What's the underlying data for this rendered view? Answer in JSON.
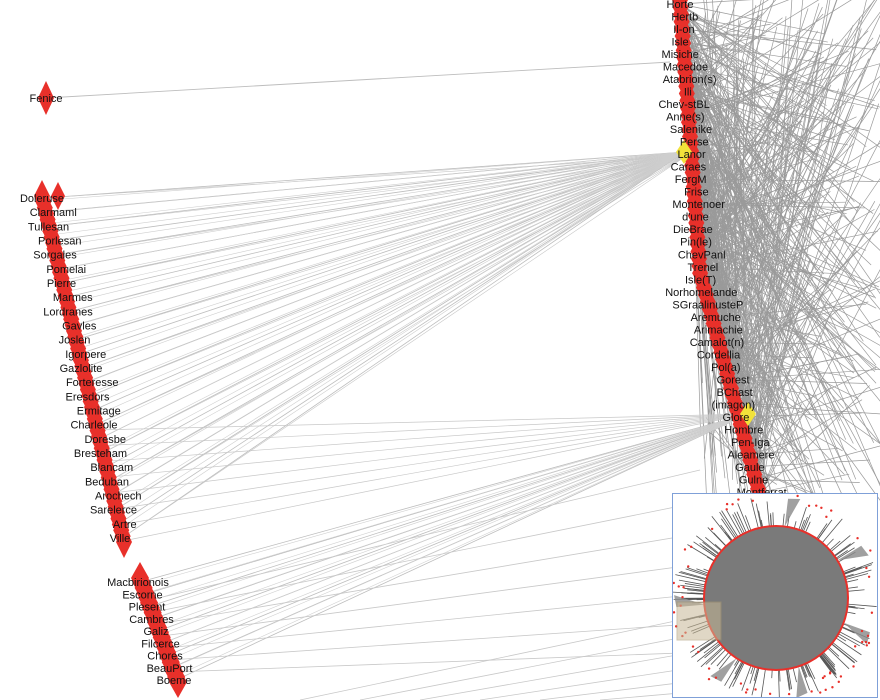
{
  "colors": {
    "node": "#e8302a",
    "highlight_node": "#f2e23a",
    "edge": "#9a9a9a",
    "minimap_border": "#7fa0d8",
    "minimap_core": "#7a7a7a",
    "minimap_ring": "#e8302a"
  },
  "isolated_node": {
    "label": "Fenice"
  },
  "left_cluster": {
    "labels": [
      "Doleruse",
      "Clarmaml",
      "Tullesan",
      "Porlesan",
      "Sorgales",
      "Pomelai",
      "Pierre",
      "Marmes",
      "Lordranes",
      "Gavles",
      "Joslen",
      "Igorpere",
      "Gazlolite",
      "Forteresse",
      "Eresdors",
      "Ermitage",
      "Charleole",
      "Doresbe",
      "Bresteham",
      "Blancam",
      "Beduban",
      "Arochech",
      "Sarelerce",
      "Artre",
      "Ville"
    ]
  },
  "bottom_cluster": {
    "labels": [
      "Macbirionois",
      "Escorne",
      "Plesent",
      "Cambres",
      "Galiz",
      "Filcerce",
      "Chores",
      "BeauPort",
      "Boeme"
    ]
  },
  "right_cluster": {
    "labels": [
      "Horte",
      "Hertb",
      "Il-on",
      "Isle",
      "Misiche",
      "Macedoe",
      "Atabrion(s)",
      "Ili",
      "Chev-stBL",
      "Anne(s)",
      "Salenike",
      "Perse",
      "Lanor",
      "Caraes",
      "FergM",
      "Frise",
      "Montenoer",
      "d'une",
      "DieBrae",
      "Pin(le)",
      "ChevPanl",
      "Trenel",
      "Isle(T)",
      "Norhomelande",
      "SGraalinusteP",
      "Aremuche",
      "Arimachie",
      "Camalot(n)",
      "Cordellia",
      "Pol(a)",
      "Gorest",
      "BChast",
      "(imagon)",
      "Glore",
      "Hombre",
      "Pen-Iga",
      "Aleamere",
      "Gaule",
      "Gulne",
      "Montferrat"
    ]
  },
  "minimap": {
    "label": "overview"
  }
}
